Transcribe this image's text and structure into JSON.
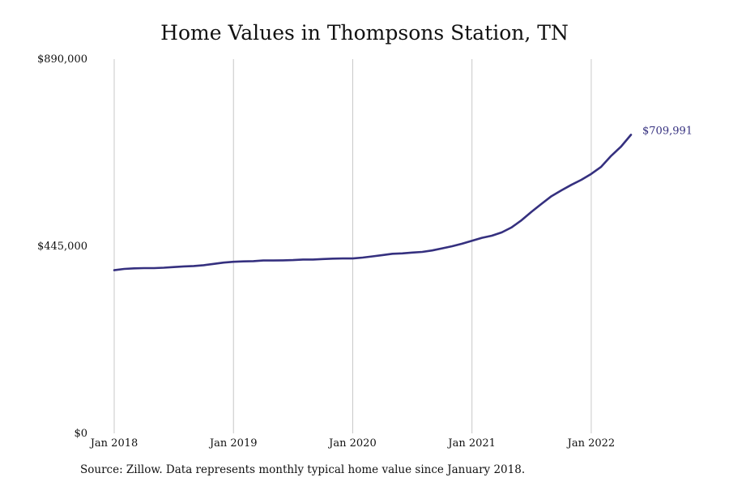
{
  "chart_data": {
    "type": "line",
    "title": "Home Values in Thompsons Station, TN",
    "xlabel": "",
    "ylabel": "",
    "ylim": [
      0,
      890000
    ],
    "yticks": [
      {
        "value": 0,
        "label": "$0"
      },
      {
        "value": 445000,
        "label": "$445,000"
      },
      {
        "value": 890000,
        "label": "$890,000"
      }
    ],
    "xticks": [
      {
        "value": "2018-01",
        "label": "Jan 2018"
      },
      {
        "value": "2019-01",
        "label": "Jan 2019"
      },
      {
        "value": "2020-01",
        "label": "Jan 2020"
      },
      {
        "value": "2021-01",
        "label": "Jan 2021"
      },
      {
        "value": "2022-01",
        "label": "Jan 2022"
      }
    ],
    "xlim": [
      "2018-01",
      "2022-05"
    ],
    "grid": {
      "vertical": true,
      "horizontal": false
    },
    "legend": "none",
    "end_label": "$709,991",
    "series": [
      {
        "color": "#35307f",
        "x": [
          "2018-01",
          "2018-02",
          "2018-03",
          "2018-04",
          "2018-05",
          "2018-06",
          "2018-07",
          "2018-08",
          "2018-09",
          "2018-10",
          "2018-11",
          "2018-12",
          "2019-01",
          "2019-02",
          "2019-03",
          "2019-04",
          "2019-05",
          "2019-06",
          "2019-07",
          "2019-08",
          "2019-09",
          "2019-10",
          "2019-11",
          "2019-12",
          "2020-01",
          "2020-02",
          "2020-03",
          "2020-04",
          "2020-05",
          "2020-06",
          "2020-07",
          "2020-08",
          "2020-09",
          "2020-10",
          "2020-11",
          "2020-12",
          "2021-01",
          "2021-02",
          "2021-03",
          "2021-04",
          "2021-05",
          "2021-06",
          "2021-07",
          "2021-08",
          "2021-09",
          "2021-10",
          "2021-11",
          "2021-12",
          "2022-01",
          "2022-02",
          "2022-03",
          "2022-04",
          "2022-05"
        ],
        "values": [
          388000,
          391000,
          392500,
          393000,
          393000,
          394000,
          395500,
          397000,
          398000,
          400000,
          403000,
          406000,
          408000,
          409000,
          409500,
          411000,
          411000,
          411500,
          412000,
          413500,
          413500,
          414500,
          415500,
          416000,
          416000,
          418000,
          421000,
          424000,
          427000,
          428000,
          430000,
          431500,
          435000,
          440000,
          445000,
          451000,
          458000,
          465000,
          470000,
          478000,
          490000,
          507000,
          527000,
          546000,
          564000,
          578000,
          591000,
          603000,
          617000,
          634000,
          660000,
          682000,
          709991
        ]
      }
    ]
  },
  "footer": {
    "source": "Source: Zillow. Data represents monthly typical home value since January 2018."
  }
}
